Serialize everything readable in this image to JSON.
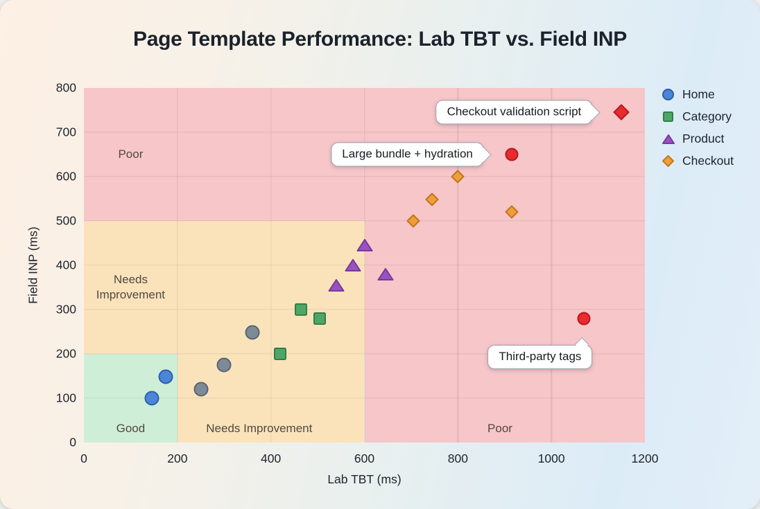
{
  "chart_data": {
    "type": "scatter",
    "title": "Page Template Performance: Lab TBT vs. Field INP",
    "xlabel": "Lab TBT (ms)",
    "ylabel": "Field INP (ms)",
    "xlim": [
      0,
      1200
    ],
    "ylim": [
      0,
      800
    ],
    "x_ticks": [
      0,
      200,
      400,
      600,
      800,
      1000,
      1200
    ],
    "y_ticks": [
      0,
      100,
      200,
      300,
      400,
      500,
      600,
      700,
      800
    ],
    "grid": true,
    "legend_position": "right-top",
    "zones": [
      {
        "id": "good",
        "x0": 0,
        "x1": 200,
        "y0": 0,
        "y1": 200,
        "color": "#cfeed8",
        "label": "Good"
      },
      {
        "id": "needs-improvement-left",
        "x0": 0,
        "x1": 600,
        "y0": 200,
        "y1": 500,
        "color": "#fae3bb",
        "label": "Needs Improvement"
      },
      {
        "id": "needs-improvement-bottom",
        "x0": 200,
        "x1": 600,
        "y0": 0,
        "y1": 200,
        "color": "#fae3bb",
        "label": "Needs Improvement"
      },
      {
        "id": "poor-top",
        "x0": 0,
        "x1": 1200,
        "y0": 500,
        "y1": 800,
        "color": "#f6c6c9",
        "label": "Poor"
      },
      {
        "id": "poor-right",
        "x0": 600,
        "x1": 1200,
        "y0": 0,
        "y1": 500,
        "color": "#f6c6c9",
        "label": "Poor"
      }
    ],
    "zone_labels": [
      {
        "id": "poor-upper",
        "lines": [
          "Poor"
        ],
        "x": 100,
        "y": 650
      },
      {
        "id": "needs-improvement-upper",
        "lines": [
          "Needs",
          "Improvement"
        ],
        "x": 100,
        "y": 350
      },
      {
        "id": "good",
        "lines": [
          "Good"
        ],
        "x": 100,
        "y": 32
      },
      {
        "id": "needs-improvement-lower",
        "lines": [
          "Needs Improvement"
        ],
        "x": 375,
        "y": 32
      },
      {
        "id": "poor-lower",
        "lines": [
          "Poor"
        ],
        "x": 890,
        "y": 32
      }
    ],
    "series": [
      {
        "id": "home",
        "name": "Home",
        "in_legend": true,
        "marker": "circle",
        "color": "#4c85d8",
        "stroke": "#2d5fa8",
        "size": 21,
        "legend_size": 17,
        "points": [
          [
            145,
            100
          ],
          [
            175,
            148
          ]
        ]
      },
      {
        "id": "unlabeled-gray",
        "name": "",
        "in_legend": false,
        "marker": "circle",
        "color": "#7d8a97",
        "stroke": "#59646f",
        "size": 21,
        "legend_size": 17,
        "points": [
          [
            250,
            120
          ],
          [
            300,
            175
          ],
          [
            360,
            248
          ]
        ]
      },
      {
        "id": "category",
        "name": "Category",
        "in_legend": true,
        "marker": "square",
        "color": "#4fa767",
        "stroke": "#337d49",
        "size": 18,
        "legend_size": 15,
        "points": [
          [
            420,
            200
          ],
          [
            465,
            300
          ],
          [
            505,
            280
          ]
        ]
      },
      {
        "id": "product",
        "name": "Product",
        "in_legend": true,
        "marker": "triangle",
        "color": "#9a52c0",
        "stroke": "#76399c",
        "size": 20,
        "legend_size": 16,
        "points": [
          [
            540,
            355
          ],
          [
            575,
            400
          ],
          [
            600,
            445
          ],
          [
            645,
            380
          ]
        ]
      },
      {
        "id": "checkout",
        "name": "Checkout",
        "in_legend": true,
        "marker": "diamond",
        "color": "#f09d3c",
        "stroke": "#c1771a",
        "size": 19,
        "legend_size": 17,
        "points": [
          [
            705,
            500
          ],
          [
            745,
            548
          ],
          [
            800,
            600
          ],
          [
            915,
            520
          ]
        ]
      },
      {
        "id": "highlight-circle",
        "name": "",
        "in_legend": false,
        "marker": "circle",
        "color": "#e92a2e",
        "stroke": "#b6191d",
        "size": 19,
        "legend_size": 17,
        "points": [
          [
            915,
            650
          ],
          [
            1070,
            280
          ]
        ]
      },
      {
        "id": "highlight-diamond",
        "name": "",
        "in_legend": false,
        "marker": "diamond",
        "color": "#e92a2e",
        "stroke": "#b6191d",
        "size": 23,
        "legend_size": 17,
        "points": [
          [
            1150,
            745
          ]
        ]
      }
    ],
    "annotations": [
      {
        "text": "Checkout validation script",
        "x": 1150,
        "y": 745,
        "dir": "right",
        "gap": 42
      },
      {
        "text": "Large bundle + hydration",
        "x": 915,
        "y": 650,
        "dir": "right",
        "gap": 40
      },
      {
        "text": "Third-party tags",
        "x": 1070,
        "y": 280,
        "dir": "up",
        "tail_frac": 0.92,
        "dy": 38
      }
    ],
    "annotation_style": {
      "background": "#ffffff",
      "border": "#99a1a9"
    }
  }
}
